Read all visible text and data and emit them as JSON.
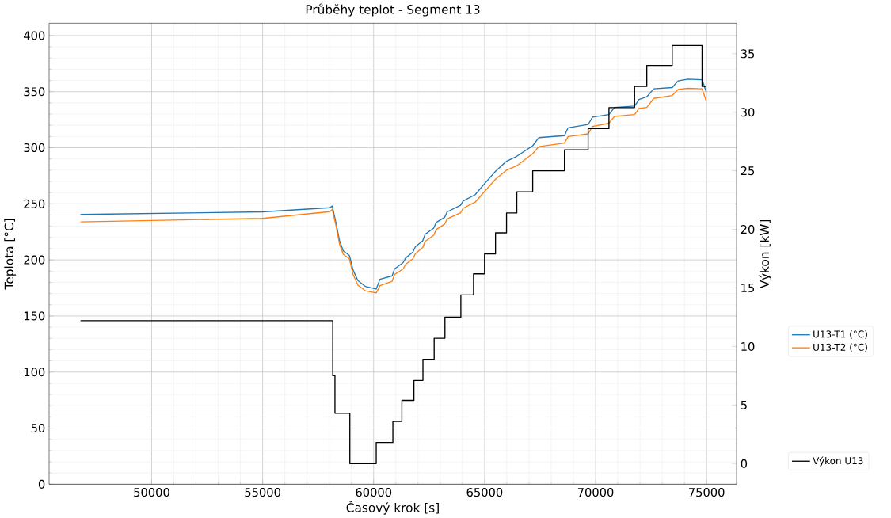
{
  "chart_data": {
    "type": "line",
    "title": "Průběhy teplot - Segment 13",
    "xlabel": "Časový krok [s]",
    "ylabel": "Teplota [°C]",
    "y2label": "Výkon [kW]",
    "xlim": [
      45380,
      76350
    ],
    "ylim": [
      0,
      411
    ],
    "y2lim": [
      -1.76,
      37.6
    ],
    "xticks": [
      50000,
      55000,
      60000,
      65000,
      70000,
      75000
    ],
    "yticks": [
      0,
      50,
      100,
      150,
      200,
      250,
      300,
      350,
      400
    ],
    "y2ticks": [
      0,
      5,
      10,
      15,
      20,
      25,
      30,
      35
    ],
    "grid": true,
    "legend": "right",
    "series": [
      {
        "name": "U13-T1 (°C)",
        "color": "#1f77b4",
        "x": [
          46796,
          54988,
          58026,
          58135,
          58300,
          58466,
          58631,
          58908,
          59073,
          59291,
          59622,
          60117,
          60283,
          60834,
          60943,
          61329,
          61438,
          61768,
          61881,
          62211,
          62320,
          62707,
          62816,
          63202,
          63311,
          63916,
          64028,
          64576,
          64996,
          65491,
          65987,
          66450,
          67166,
          67440,
          68596,
          68761,
          69663,
          69861,
          70601,
          70852,
          71757,
          71955,
          72306,
          72617,
          73452,
          73716,
          74155,
          74796,
          74981
        ],
        "values": [
          240.5,
          242.8,
          246.5,
          248,
          233.4,
          217,
          208,
          204,
          191,
          181.6,
          176.4,
          174,
          182.7,
          185.8,
          192,
          197.6,
          201.6,
          207,
          211.7,
          217,
          222.8,
          228.3,
          233.4,
          238,
          242.8,
          248.8,
          252.4,
          258.2,
          268,
          279,
          288,
          292.4,
          301.8,
          309,
          310.8,
          317.8,
          320.7,
          327.3,
          329.6,
          336,
          337.2,
          343,
          345.4,
          352.5,
          353.7,
          359.6,
          361.2,
          360.7,
          350
        ]
      },
      {
        "name": "U13-T2 (°C)",
        "color": "#ff7f0e",
        "x": [
          46796,
          54988,
          58026,
          58135,
          58300,
          58466,
          58631,
          58908,
          59073,
          59291,
          59622,
          60117,
          60283,
          60834,
          60943,
          61329,
          61438,
          61768,
          61881,
          62211,
          62320,
          62707,
          62816,
          63202,
          63311,
          63916,
          64028,
          64576,
          64996,
          65491,
          65987,
          66450,
          67166,
          67440,
          68596,
          68761,
          69663,
          69861,
          70601,
          70852,
          71757,
          71955,
          72306,
          72617,
          73452,
          73716,
          74155,
          74796,
          74981
        ],
        "values": [
          233.9,
          237,
          243,
          245,
          231,
          214,
          205,
          201,
          187,
          177.5,
          172.5,
          170.5,
          177,
          181,
          187,
          192,
          196,
          201,
          205.5,
          211,
          216.5,
          222,
          227,
          232,
          236.5,
          242,
          246,
          251.5,
          261,
          272,
          280,
          284,
          294.7,
          301,
          304.2,
          310,
          312.4,
          319,
          321.9,
          328,
          329.6,
          335,
          336,
          344,
          346.6,
          352,
          353,
          352.5,
          341.9
        ]
      },
      {
        "name": "Výkon U13",
        "color": "#000000",
        "type": "step",
        "axis": "y2",
        "x": [
          46796,
          58158,
          58258,
          58928,
          60117,
          60867,
          61273,
          61815,
          62221,
          62727,
          63212,
          63929,
          64500,
          64996,
          65491,
          65987,
          66450,
          67166,
          68596,
          69663,
          70601,
          71757,
          72306,
          73452,
          74796,
          74971
        ],
        "values": [
          12.2,
          7.5,
          4.3,
          0,
          1.8,
          3.6,
          5.4,
          7.1,
          8.9,
          10.7,
          12.5,
          14.4,
          16.2,
          17.9,
          19.7,
          21.4,
          23.2,
          25,
          26.8,
          28.6,
          30.4,
          32.2,
          34,
          35.7,
          32.2,
          32.2
        ]
      }
    ]
  }
}
